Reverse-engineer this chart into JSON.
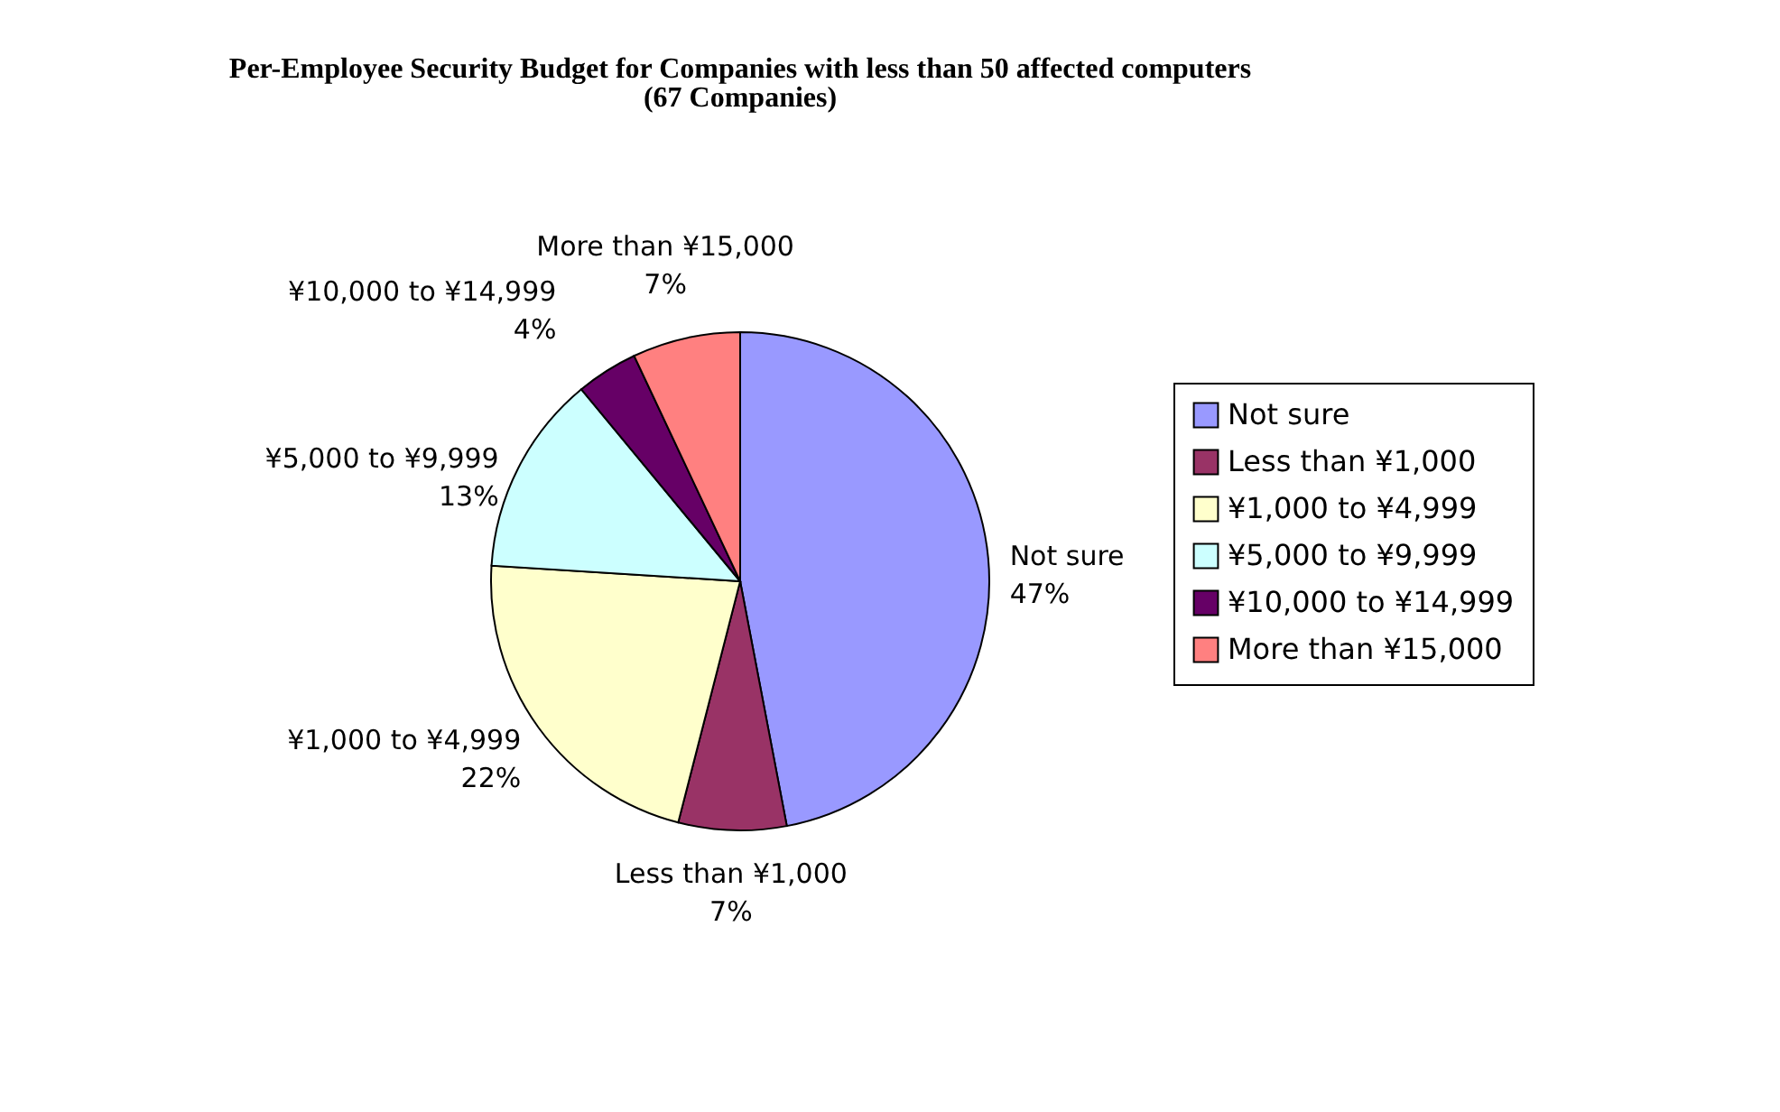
{
  "chart_data": {
    "type": "pie",
    "title": "Per-Employee Security Budget for Companies with less than 50 affected computers",
    "subtitle": "(67 Companies)",
    "categories": [
      "Not sure",
      "Less than ¥1,000",
      "¥1,000 to ¥4,999",
      "¥5,000 to ¥9,999",
      "¥10,000 to ¥14,999",
      "More than ¥15,000"
    ],
    "values": [
      47,
      7,
      22,
      13,
      4,
      7
    ],
    "value_labels": [
      "47%",
      "7%",
      "22%",
      "13%",
      "4%",
      "7%"
    ],
    "colors": [
      "#9999ff",
      "#993366",
      "#ffffcc",
      "#ccffff",
      "#660066",
      "#ff8080"
    ],
    "legend": "right"
  }
}
